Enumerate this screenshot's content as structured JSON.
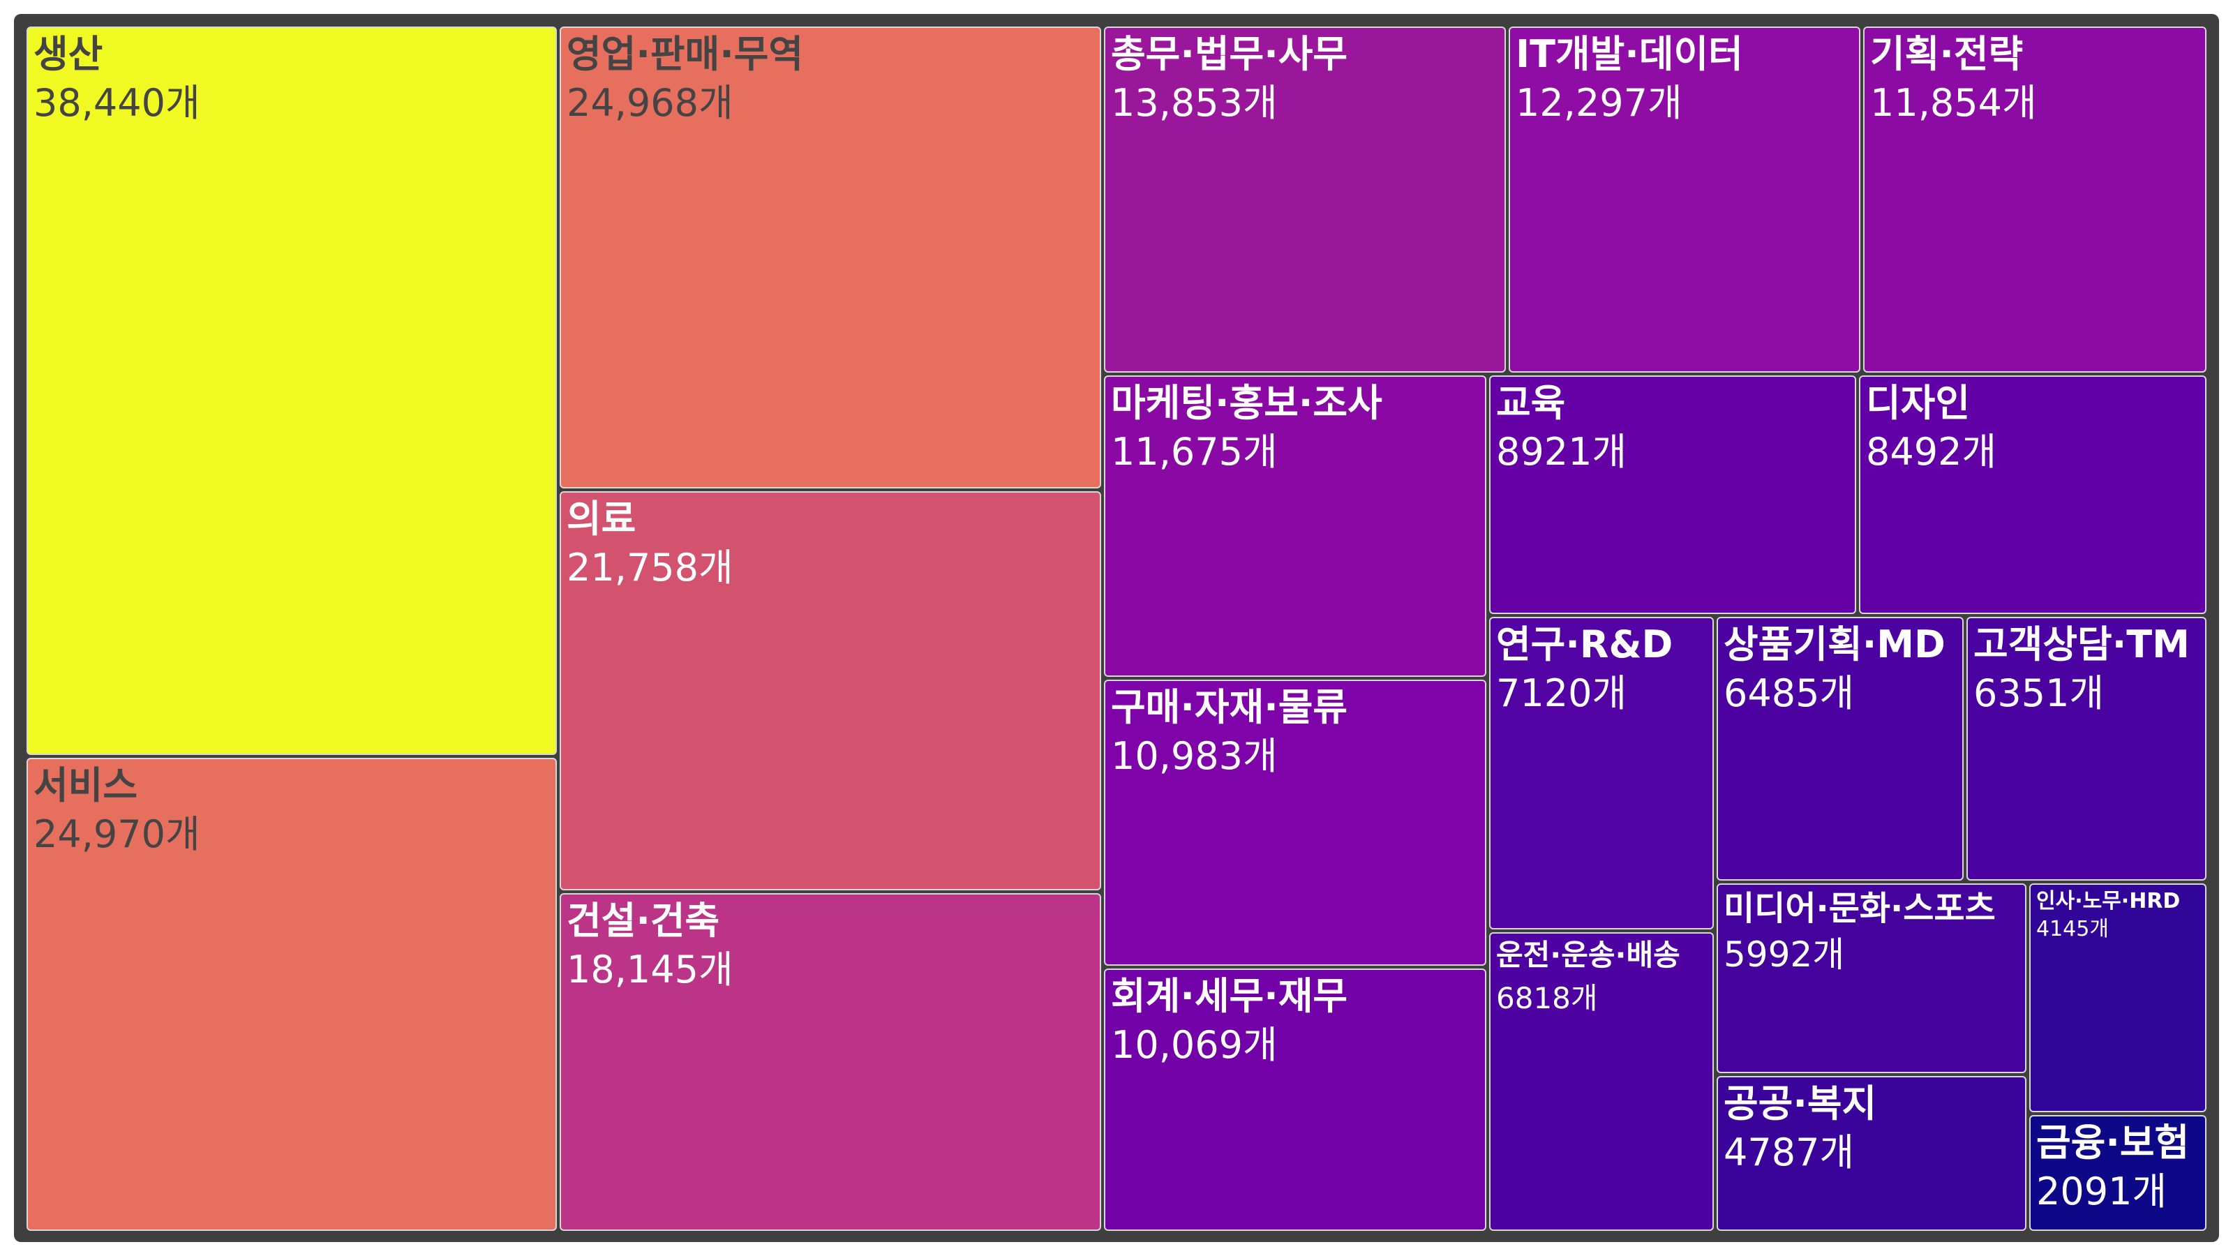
{
  "chart_data": {
    "type": "treemap",
    "unit": "개",
    "items": [
      {
        "label": "생산",
        "value": 38440,
        "value_text": "38,440개",
        "color": "#f0f921"
      },
      {
        "label": "서비스",
        "value": 24970,
        "value_text": "24,970개",
        "color": "#e76f5e"
      },
      {
        "label": "영업·판매·무역",
        "value": 24968,
        "value_text": "24,968개",
        "color": "#e76f5e"
      },
      {
        "label": "의료",
        "value": 21758,
        "value_text": "21,758개",
        "color": "#d3536f"
      },
      {
        "label": "건설·건축",
        "value": 18145,
        "value_text": "18,145개",
        "color": "#bb3488"
      },
      {
        "label": "총무·법무·사무",
        "value": 13853,
        "value_text": "13,853개",
        "color": "#9a179b"
      },
      {
        "label": "IT개발·데이터",
        "value": 12297,
        "value_text": "12,297개",
        "color": "#8f0da4"
      },
      {
        "label": "기획·전략",
        "value": 11854,
        "value_text": "11,854개",
        "color": "#8c0ba5"
      },
      {
        "label": "마케팅·홍보·조사",
        "value": 11675,
        "value_text": "11,675개",
        "color": "#8a09a5"
      },
      {
        "label": "구매·자재·물류",
        "value": 10983,
        "value_text": "10,983개",
        "color": "#7e03a8"
      },
      {
        "label": "회계·세무·재무",
        "value": 10069,
        "value_text": "10,069개",
        "color": "#7201a8"
      },
      {
        "label": "교육",
        "value": 8921,
        "value_text": "8921개",
        "color": "#6500a7"
      },
      {
        "label": "디자인",
        "value": 8492,
        "value_text": "8492개",
        "color": "#6100a7"
      },
      {
        "label": "연구·R&D",
        "value": 7120,
        "value_text": "7120개",
        "color": "#5302a3"
      },
      {
        "label": "운전·운송·배송",
        "value": 6818,
        "value_text": "6818개",
        "color": "#4f02a2"
      },
      {
        "label": "상품기획·MD",
        "value": 6485,
        "value_text": "6485개",
        "color": "#4c02a1"
      },
      {
        "label": "고객상담·TM",
        "value": 6351,
        "value_text": "6351개",
        "color": "#4a02a0"
      },
      {
        "label": "미디어·문화·스포츠",
        "value": 5992,
        "value_text": "5992개",
        "color": "#45039e"
      },
      {
        "label": "공공·복지",
        "value": 4787,
        "value_text": "4787개",
        "color": "#3a049a"
      },
      {
        "label": "인사·노무·HRD",
        "value": 4145,
        "value_text": "4145개",
        "color": "#310597"
      },
      {
        "label": "금융·보험",
        "value": 2091,
        "value_text": "2091개",
        "color": "#0d0887"
      }
    ]
  }
}
